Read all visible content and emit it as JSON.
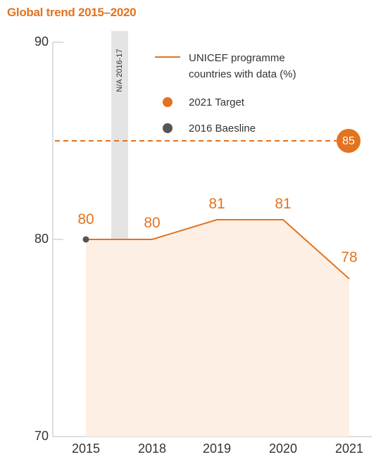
{
  "colors": {
    "accent": "#e3731f",
    "fill": "#fdefe4",
    "baseline_dot": "#555555",
    "na_band": "#e4e4e4",
    "axis": "#bdbdbd",
    "tick_text": "#333333",
    "legend_text": "#333333"
  },
  "chart_data": {
    "type": "line",
    "title": "Global trend 2015–2020",
    "categories": [
      "2015",
      "2018",
      "2019",
      "2020",
      "2021"
    ],
    "series": [
      {
        "name": "UNICEF programme countries with data (%)",
        "values": [
          80,
          80,
          81,
          81,
          78
        ]
      }
    ],
    "data_labels": [
      "80",
      "80",
      "81",
      "81",
      "78"
    ],
    "target": {
      "label": "2021 Target",
      "value": 85,
      "value_label": "85"
    },
    "baseline": {
      "label": "2016 Baesline",
      "category": "2015",
      "value": 80
    },
    "na_band": {
      "label": "N/A 2016-17",
      "between": [
        "2015",
        "2018"
      ]
    },
    "legend": {
      "series_line1": "UNICEF programme",
      "series_line2": "countries with data (%)",
      "target": "2021 Target",
      "baseline": "2016 Baesline",
      "placement": "top-right"
    },
    "ylim": [
      70,
      90
    ],
    "y_ticks": [
      "70",
      "80",
      "90"
    ],
    "xlabel": "",
    "ylabel": "",
    "grid": false
  }
}
